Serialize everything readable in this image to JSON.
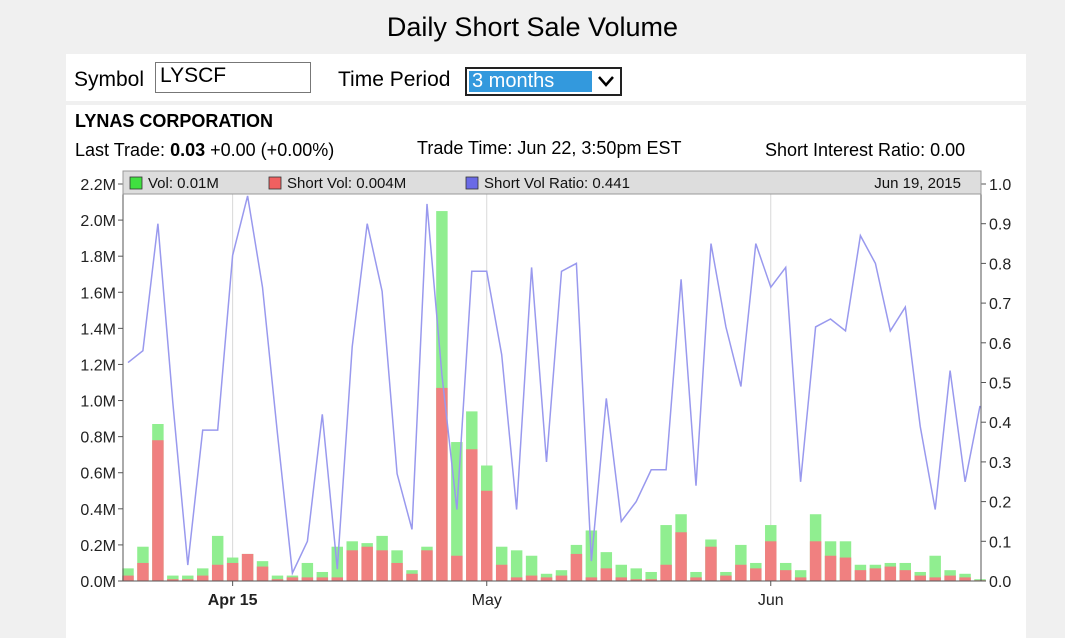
{
  "title": "Daily Short Sale Volume",
  "controls": {
    "symbol_label": "Symbol",
    "symbol_value": "LYSCF",
    "period_label": "Time Period",
    "period_value": "3 months"
  },
  "info": {
    "company": "LYNAS CORPORATION",
    "last_trade_label": "Last Trade:",
    "last_trade_price": "0.03",
    "last_trade_change": "+0.00 (+0.00%)",
    "trade_time": "Trade Time: Jun 22, 3:50pm EST",
    "short_interest_ratio": "Short Interest Ratio: 0.00"
  },
  "colors": {
    "vol": "#90ee90",
    "short_vol": "#f08080",
    "ratio_line": "#9999ee",
    "legend_vol": "#40e040",
    "legend_short": "#f06060",
    "legend_ratio": "#6a6ae6"
  },
  "chart_data": {
    "type": "bar+line",
    "legend": {
      "vol": "Vol: 0.01M",
      "short_vol": "Short Vol: 0.004M",
      "ratio": "Short Vol Ratio: 0.441",
      "date": "Jun 19, 2015"
    },
    "x_labels": [
      {
        "label": "Apr 15",
        "index": 7,
        "bold": true
      },
      {
        "label": "May",
        "index": 24,
        "bold": false
      },
      {
        "label": "Jun",
        "index": 43,
        "bold": false
      }
    ],
    "left_axis": {
      "ylim": [
        0,
        2.2
      ],
      "ticks": [
        "0.0M",
        "0.2M",
        "0.4M",
        "0.6M",
        "0.8M",
        "1.0M",
        "1.2M",
        "1.4M",
        "1.6M",
        "1.8M",
        "2.0M",
        "2.2M"
      ]
    },
    "right_axis": {
      "ylim": [
        0,
        1.0
      ],
      "ticks": [
        "0.0",
        "0.1",
        "0.2",
        "0.3",
        "0.4",
        "0.5",
        "0.6",
        "0.7",
        "0.8",
        "0.9",
        "1.0"
      ]
    },
    "series": [
      {
        "name": "Vol",
        "unit": "M",
        "values": [
          0.07,
          0.19,
          0.87,
          0.03,
          0.03,
          0.07,
          0.25,
          0.13,
          0.15,
          0.11,
          0.03,
          0.03,
          0.1,
          0.05,
          0.19,
          0.22,
          0.21,
          0.25,
          0.17,
          0.06,
          0.19,
          2.05,
          0.77,
          0.94,
          0.64,
          0.19,
          0.17,
          0.14,
          0.04,
          0.06,
          0.2,
          0.28,
          0.16,
          0.09,
          0.07,
          0.05,
          0.31,
          0.37,
          0.05,
          0.23,
          0.05,
          0.2,
          0.1,
          0.31,
          0.1,
          0.06,
          0.37,
          0.22,
          0.22,
          0.09,
          0.09,
          0.1,
          0.1,
          0.05,
          0.14,
          0.06,
          0.04,
          0.01
        ]
      },
      {
        "name": "Short Vol",
        "unit": "M",
        "values": [
          0.03,
          0.1,
          0.78,
          0.01,
          0.01,
          0.03,
          0.09,
          0.1,
          0.15,
          0.08,
          0.01,
          0.02,
          0.02,
          0.02,
          0.02,
          0.17,
          0.19,
          0.17,
          0.1,
          0.04,
          0.17,
          1.07,
          0.14,
          0.73,
          0.5,
          0.09,
          0.02,
          0.03,
          0.02,
          0.03,
          0.15,
          0.02,
          0.07,
          0.02,
          0.01,
          0.01,
          0.09,
          0.27,
          0.02,
          0.19,
          0.03,
          0.09,
          0.07,
          0.22,
          0.06,
          0.02,
          0.22,
          0.14,
          0.13,
          0.06,
          0.07,
          0.08,
          0.06,
          0.03,
          0.02,
          0.03,
          0.02,
          0.004
        ]
      },
      {
        "name": "Short Vol Ratio",
        "values": [
          0.55,
          0.58,
          0.9,
          0.45,
          0.04,
          0.38,
          0.38,
          0.82,
          0.97,
          0.74,
          0.37,
          0.02,
          0.1,
          0.42,
          0.03,
          0.59,
          0.9,
          0.73,
          0.27,
          0.13,
          0.95,
          0.52,
          0.18,
          0.78,
          0.78,
          0.57,
          0.18,
          0.79,
          0.3,
          0.78,
          0.8,
          0.05,
          0.46,
          0.15,
          0.2,
          0.28,
          0.28,
          0.76,
          0.24,
          0.85,
          0.64,
          0.49,
          0.85,
          0.74,
          0.79,
          0.25,
          0.64,
          0.66,
          0.63,
          0.87,
          0.8,
          0.63,
          0.69,
          0.39,
          0.18,
          0.53,
          0.25,
          0.441
        ]
      }
    ]
  }
}
